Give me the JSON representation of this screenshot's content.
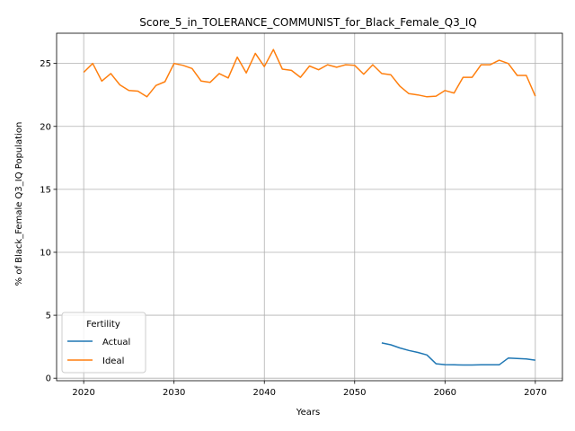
{
  "chart_data": {
    "type": "line",
    "title": "Score_5_in_TOLERANCE_COMMUNIST_for_Black_Female_Q3_IQ",
    "xlabel": "Years",
    "ylabel": "% of Black_Female Q3_IQ Population",
    "xlim": [
      2017,
      2073
    ],
    "ylim": [
      -0.2,
      27.4
    ],
    "xticks": [
      2020,
      2030,
      2040,
      2050,
      2060,
      2070
    ],
    "yticks": [
      0,
      5,
      10,
      15,
      20,
      25
    ],
    "grid": true,
    "legend": {
      "title": "Fertility",
      "placement": "lower-left"
    },
    "series": [
      {
        "name": "Actual",
        "color": "#1f77b4",
        "x": [
          2053,
          2054,
          2055,
          2056,
          2057,
          2058,
          2059,
          2060,
          2061,
          2062,
          2063,
          2064,
          2065,
          2066,
          2067,
          2068,
          2069,
          2070
        ],
        "y": [
          2.8,
          2.65,
          2.4,
          2.2,
          2.05,
          1.85,
          1.15,
          1.08,
          1.06,
          1.05,
          1.05,
          1.06,
          1.06,
          1.06,
          1.6,
          1.56,
          1.53,
          1.43
        ]
      },
      {
        "name": "Ideal",
        "color": "#ff7f0e",
        "x": [
          2020,
          2021,
          2022,
          2023,
          2024,
          2025,
          2026,
          2027,
          2028,
          2029,
          2030,
          2031,
          2032,
          2033,
          2034,
          2035,
          2036,
          2037,
          2038,
          2039,
          2040,
          2041,
          2042,
          2043,
          2044,
          2045,
          2046,
          2047,
          2048,
          2049,
          2050,
          2051,
          2052,
          2053,
          2054,
          2055,
          2056,
          2057,
          2058,
          2059,
          2060,
          2061,
          2062,
          2063,
          2064,
          2065,
          2066,
          2067,
          2068,
          2069,
          2070
        ],
        "y": [
          24.3,
          25.0,
          23.6,
          24.2,
          23.3,
          22.85,
          22.8,
          22.35,
          23.25,
          23.55,
          25.0,
          24.85,
          24.6,
          23.6,
          23.5,
          24.2,
          23.85,
          25.5,
          24.25,
          25.8,
          24.75,
          26.1,
          24.55,
          24.45,
          23.9,
          24.8,
          24.5,
          24.9,
          24.7,
          24.9,
          24.85,
          24.15,
          24.9,
          24.2,
          24.1,
          23.2,
          22.6,
          22.5,
          22.35,
          22.4,
          22.85,
          22.65,
          23.9,
          23.9,
          24.9,
          24.9,
          25.25,
          25.0,
          24.05,
          24.05,
          22.4
        ]
      }
    ]
  }
}
